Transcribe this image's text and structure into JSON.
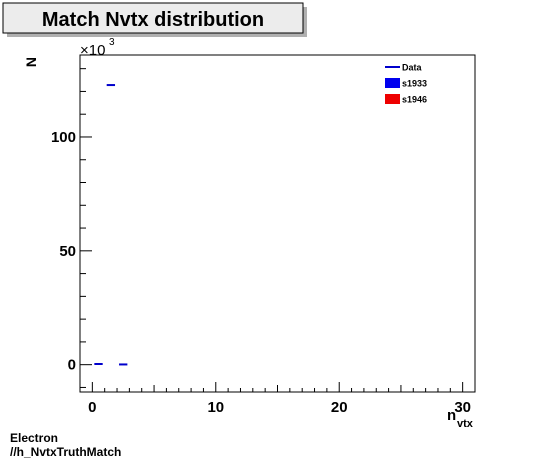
{
  "chart_data": {
    "type": "line",
    "title": "Match Nvtx distribution",
    "xlabel_main": "n",
    "xlabel_sub": "vtx",
    "ylabel": "N",
    "y_exponent_prefix": "×10",
    "y_exponent_power": "3",
    "xlim": [
      -1,
      31
    ],
    "ylim": [
      -12,
      136
    ],
    "x_ticks": [
      0,
      10,
      20,
      30
    ],
    "y_ticks": [
      0,
      50,
      100
    ],
    "legend_position": "top-right",
    "series": [
      {
        "name": "Data",
        "color": "#0000cc",
        "style": "line",
        "points": [
          {
            "x": 0.5,
            "y": 0.3
          },
          {
            "x": 1.5,
            "y": 122.8
          },
          {
            "x": 2.5,
            "y": 0.1
          }
        ]
      },
      {
        "name": "s1933",
        "color": "#0000ee",
        "style": "box",
        "points": []
      },
      {
        "name": "s1946",
        "color": "#ee0000",
        "style": "box",
        "points": []
      }
    ]
  },
  "footer": {
    "line1": "Electron",
    "line2": "//h_NvtxTruthMatch"
  }
}
